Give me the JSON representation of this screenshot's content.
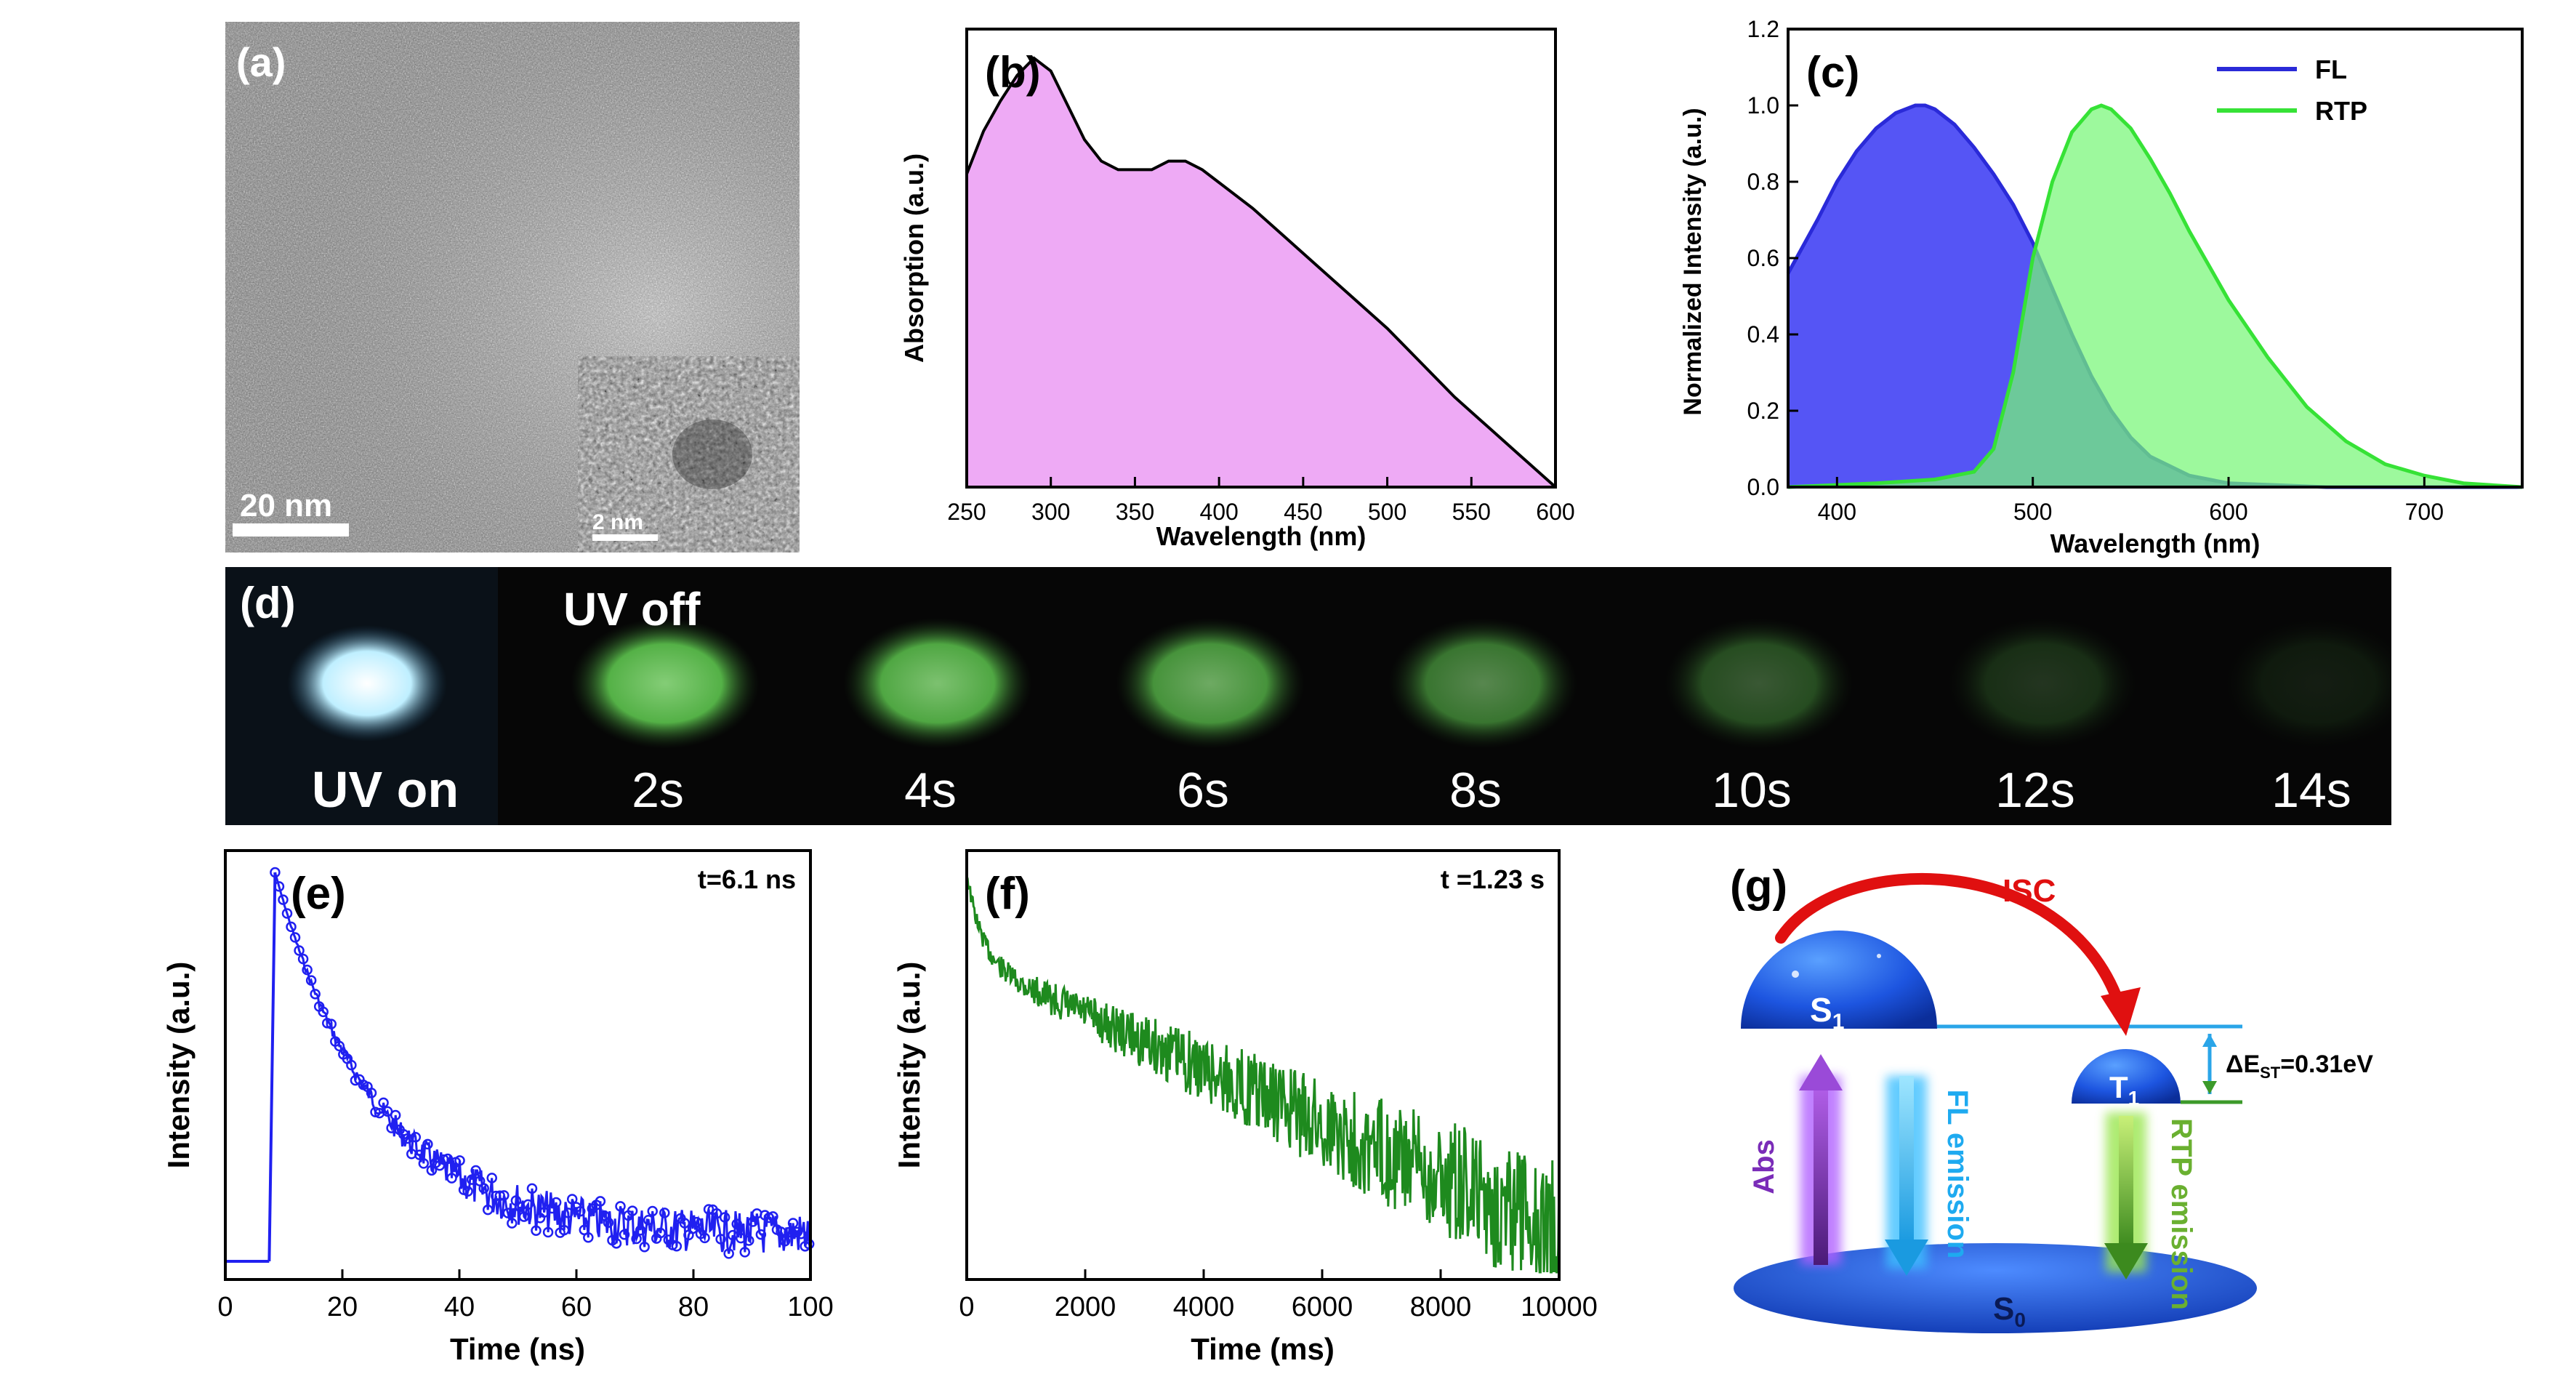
{
  "panel_a": {
    "label": "(a)",
    "scale_bar": "20 nm",
    "inset_scale_bar": "2 nm"
  },
  "panel_b": {
    "label": "(b)",
    "chart_data": {
      "type": "area",
      "xlabel": "Wavelength (nm)",
      "ylabel": "Absorption (a.u.)",
      "xlim": [
        250,
        600
      ],
      "ylim": [
        0,
        1
      ],
      "xticks": [
        250,
        300,
        350,
        400,
        450,
        500,
        550,
        600
      ],
      "fill_color": "#eeaaf5",
      "x": [
        250,
        260,
        270,
        280,
        290,
        300,
        310,
        320,
        330,
        340,
        350,
        360,
        370,
        380,
        390,
        400,
        420,
        440,
        460,
        480,
        500,
        520,
        540,
        560,
        580,
        600
      ],
      "y": [
        0.73,
        0.83,
        0.9,
        0.96,
        1.0,
        0.97,
        0.89,
        0.81,
        0.76,
        0.74,
        0.74,
        0.74,
        0.76,
        0.76,
        0.74,
        0.71,
        0.65,
        0.58,
        0.51,
        0.44,
        0.37,
        0.29,
        0.21,
        0.14,
        0.07,
        0.0
      ]
    }
  },
  "panel_c": {
    "label": "(c)",
    "chart_data": {
      "type": "area",
      "xlabel": "Wavelength (nm)",
      "ylabel": "Normalized Intensity (a.u.)",
      "xlim": [
        375,
        750
      ],
      "ylim": [
        0,
        1.2
      ],
      "xticks": [
        400,
        500,
        600,
        700
      ],
      "yticks": [
        0.0,
        0.2,
        0.4,
        0.6,
        0.8,
        1.0,
        1.2
      ],
      "legend_position": "top-right",
      "series": [
        {
          "name": "FL",
          "color": "#2a2ad8",
          "fill": "#5555f5",
          "x": [
            375,
            390,
            400,
            410,
            420,
            430,
            440,
            445,
            450,
            460,
            470,
            480,
            490,
            500,
            510,
            520,
            530,
            540,
            550,
            560,
            580,
            600,
            650,
            700,
            750
          ],
          "y": [
            0.56,
            0.7,
            0.8,
            0.88,
            0.94,
            0.98,
            1.0,
            1.0,
            0.99,
            0.95,
            0.89,
            0.82,
            0.74,
            0.64,
            0.52,
            0.4,
            0.29,
            0.2,
            0.13,
            0.08,
            0.03,
            0.01,
            0.0,
            0.0,
            0.0
          ]
        },
        {
          "name": "RTP",
          "color": "#36e236",
          "fill": "#77f777",
          "x": [
            375,
            420,
            450,
            470,
            480,
            490,
            500,
            510,
            520,
            530,
            535,
            540,
            550,
            560,
            570,
            580,
            590,
            600,
            620,
            640,
            660,
            680,
            700,
            720,
            750
          ],
          "y": [
            0.0,
            0.01,
            0.02,
            0.04,
            0.1,
            0.3,
            0.6,
            0.8,
            0.93,
            0.99,
            1.0,
            0.99,
            0.94,
            0.86,
            0.77,
            0.67,
            0.58,
            0.49,
            0.34,
            0.21,
            0.12,
            0.06,
            0.03,
            0.01,
            0.0
          ]
        }
      ]
    }
  },
  "panel_d": {
    "label": "(d)",
    "title_off": "UV off",
    "frames": [
      {
        "label": "UV on",
        "brightness": 1.0
      },
      {
        "label": "2s",
        "brightness": 0.85
      },
      {
        "label": "4s",
        "brightness": 0.8
      },
      {
        "label": "6s",
        "brightness": 0.7
      },
      {
        "label": "8s",
        "brightness": 0.55
      },
      {
        "label": "10s",
        "brightness": 0.35
      },
      {
        "label": "12s",
        "brightness": 0.2
      },
      {
        "label": "14s",
        "brightness": 0.1
      }
    ]
  },
  "panel_e": {
    "label": "(e)",
    "annotation": "t=6.1 ns",
    "chart_data": {
      "type": "scatter",
      "xlabel": "Time (ns)",
      "ylabel": "Intensity (a.u.)",
      "xlim": [
        0,
        100
      ],
      "xticks": [
        0,
        20,
        40,
        60,
        80,
        100
      ],
      "color": "#2020f0",
      "lifetime_ns": 6.1
    }
  },
  "panel_f": {
    "label": "(f)",
    "annotation": "t =1.23 s",
    "chart_data": {
      "type": "line",
      "xlabel": "Time (ms)",
      "ylabel": "Intensity (a.u.)",
      "xlim": [
        0,
        10000
      ],
      "xticks": [
        0,
        2000,
        4000,
        6000,
        8000,
        10000
      ],
      "color": "#1e8a1e",
      "lifetime_s": 1.23
    }
  },
  "panel_g": {
    "label": "(g)",
    "isc": "ISC",
    "s1": "S",
    "s1_sub": "1",
    "t1": "T",
    "t1_sub": "1",
    "s0": "S",
    "s0_sub": "0",
    "abs": "Abs",
    "fl": "FL emission",
    "rtp": "RTP emission",
    "gap_prefix": "ΔE",
    "gap_sub": "ST",
    "gap_value": "=0.31eV"
  }
}
